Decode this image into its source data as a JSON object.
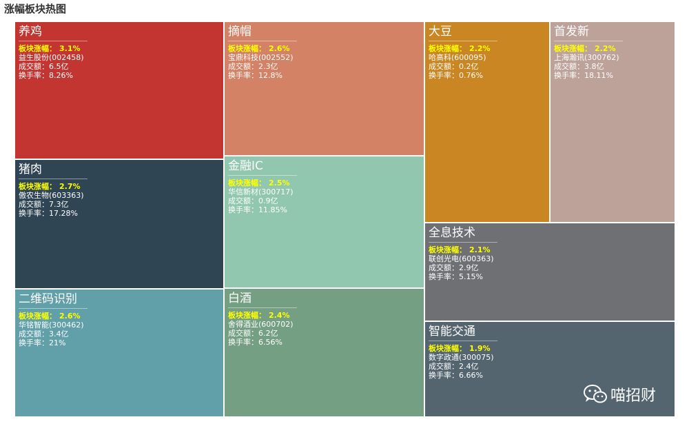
{
  "page": {
    "title": "涨幅板块热图"
  },
  "labels": {
    "change": "板块涨幅：",
    "volume": "成交额：",
    "turnover": "换手率："
  },
  "watermark": {
    "text": "喵招财"
  },
  "chart_data": {
    "type": "treemap",
    "title": "涨幅板块热图",
    "tiles": [
      {
        "name": "养鸡",
        "change": "3.1%",
        "stock": "益生股份(002458)",
        "volume": "6.5亿",
        "turnover": "8.26%",
        "color": "#c23531"
      },
      {
        "name": "猪肉",
        "change": "2.7%",
        "stock": "傲农生物(603363)",
        "volume": "7.3亿",
        "turnover": "17.28%",
        "color": "#2f4554"
      },
      {
        "name": "二维码识别",
        "change": "2.6%",
        "stock": "华铭智能(300462)",
        "volume": "3.4亿",
        "turnover": "21%",
        "color": "#61a0a8"
      },
      {
        "name": "摘帽",
        "change": "2.6%",
        "stock": "宝鼎科技(002552)",
        "volume": "2.3亿",
        "turnover": "12.8%",
        "color": "#d48265"
      },
      {
        "name": "金融IC",
        "change": "2.5%",
        "stock": "华信新材(300717)",
        "volume": "0.9亿",
        "turnover": "11.85%",
        "color": "#91c7ae"
      },
      {
        "name": "白酒",
        "change": "2.4%",
        "stock": "舍得酒业(600702)",
        "volume": "6.2亿",
        "turnover": "6.56%",
        "color": "#749f83"
      },
      {
        "name": "大豆",
        "change": "2.2%",
        "stock": "哈高科(600095)",
        "volume": "0.2亿",
        "turnover": "0.76%",
        "color": "#ca8622"
      },
      {
        "name": "首发新",
        "change": "2.2%",
        "stock": "上海瀚讯(300762)",
        "volume": "3.8亿",
        "turnover": "18.11%",
        "color": "#bda29a"
      },
      {
        "name": "全息技术",
        "change": "2.1%",
        "stock": "联创光电(600363)",
        "volume": "2.9亿",
        "turnover": "5.15%",
        "color": "#6e7074"
      },
      {
        "name": "智能交通",
        "change": "1.9%",
        "stock": "数字政通(300075)",
        "volume": "2.4亿",
        "turnover": "6.66%",
        "color": "#546570"
      }
    ]
  }
}
